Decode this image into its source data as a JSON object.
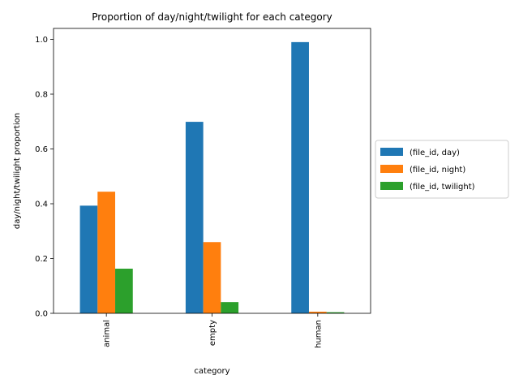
{
  "chart_data": {
    "type": "bar",
    "title": "Proportion of day/night/twilight for each category",
    "xlabel": "category",
    "ylabel": "day/night/twilight proportion",
    "categories": [
      "animal",
      "empty",
      "human"
    ],
    "series": [
      {
        "name": "(file_id, day)",
        "color": "#1f77b4",
        "values": [
          0.393,
          0.699,
          0.99
        ]
      },
      {
        "name": "(file_id, night)",
        "color": "#ff7f0e",
        "values": [
          0.444,
          0.26,
          0.006
        ]
      },
      {
        "name": "(file_id, twilight)",
        "color": "#2ca02c",
        "values": [
          0.163,
          0.041,
          0.004
        ]
      }
    ],
    "ylim": [
      0,
      1.04
    ],
    "yticks": [
      "0.0",
      "0.2",
      "0.4",
      "0.6",
      "0.8",
      "1.0"
    ],
    "grid": false,
    "legend_position": "center-right outside"
  }
}
